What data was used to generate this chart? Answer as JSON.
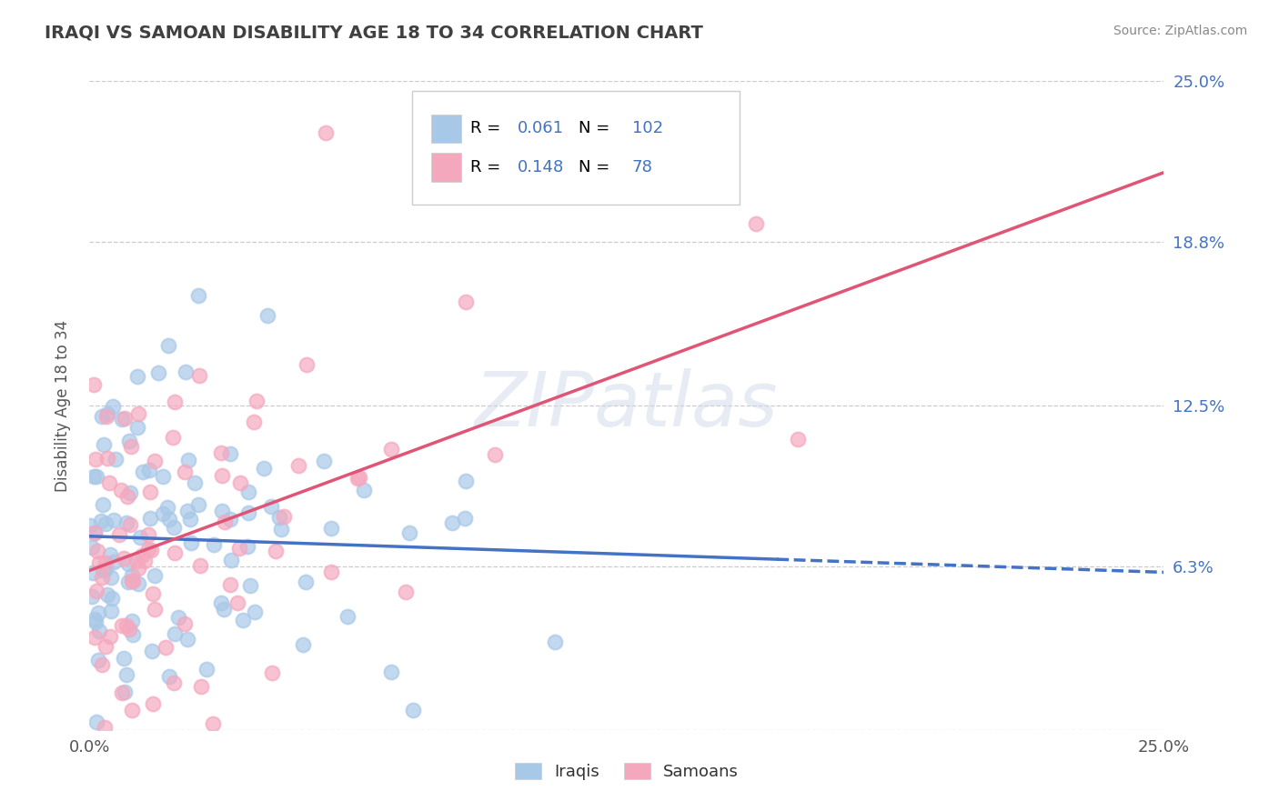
{
  "title": "IRAQI VS SAMOAN DISABILITY AGE 18 TO 34 CORRELATION CHART",
  "source_text": "Source: ZipAtlas.com",
  "ylabel": "Disability Age 18 to 34",
  "xmin": 0.0,
  "xmax": 0.25,
  "ymin": 0.0,
  "ymax": 0.25,
  "ytick_vals": [
    0.0,
    0.063,
    0.125,
    0.188,
    0.25
  ],
  "ytick_labels": [
    "",
    "6.3%",
    "12.5%",
    "18.8%",
    "25.0%"
  ],
  "xtick_vals": [
    0.0,
    0.05,
    0.1,
    0.15,
    0.2,
    0.25
  ],
  "xtick_labels": [
    "0.0%",
    "",
    "",
    "",
    "",
    "25.0%"
  ],
  "iraqi_R": 0.061,
  "iraqi_N": 102,
  "samoan_R": 0.148,
  "samoan_N": 78,
  "iraqi_color": "#a8c8e8",
  "samoan_color": "#f4a8be",
  "iraqi_line_color": "#4472c4",
  "samoan_line_color": "#e05575",
  "legend_color": "#4472c4",
  "watermark": "ZIPatlas",
  "background_color": "#ffffff",
  "grid_color": "#cccccc",
  "title_color": "#404040"
}
